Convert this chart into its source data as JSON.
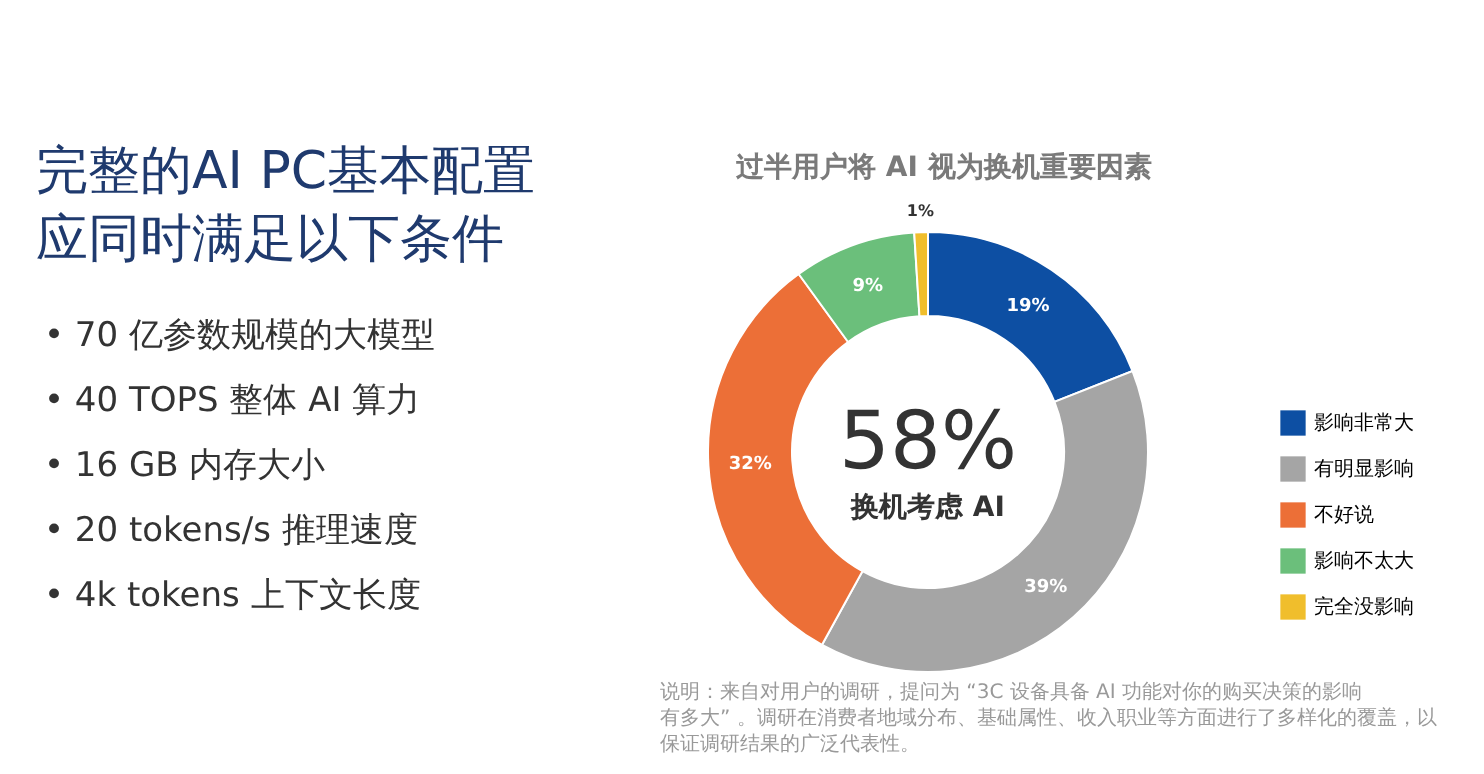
{
  "chart_data": {
    "type": "donut",
    "title": "完整的AI PC基本配置应同时满足以下条件",
    "subtitle": "过半用户将 AI 视为换机重要因素",
    "categories": [
      "影响非常大",
      "有明显影响",
      "不好说",
      "影响不太大",
      "完全没影响"
    ],
    "values": [
      19,
      39,
      32,
      9,
      1
    ],
    "value_labels": [
      "19%",
      "39%",
      "32%",
      "9%",
      "1%"
    ],
    "colors": [
      "#0d4fa3",
      "#a5a5a5",
      "#ec6f37",
      "#6bbf7b",
      "#f0be2c"
    ],
    "legend": "right",
    "annotations": [
      "• 70 亿参数规模的大模型",
      "• 40 TOPS 整体 AI 算力",
      "• 16 GB 内存大小",
      "• 20 tokens/s 推理速度",
      "• 4k tokens 上下文长度",
      "58%",
      "换机考虑 AI",
      "说明：来自对用户的调研，提问为 “3C 设备具备 AI 功能对你的购买决策的影响有多大” 。调研在消费者地域分布、基础属性、收入职业等方面进行了多样化的覆盖，以保证调研结果的广泛代表性。"
    ]
  }
}
